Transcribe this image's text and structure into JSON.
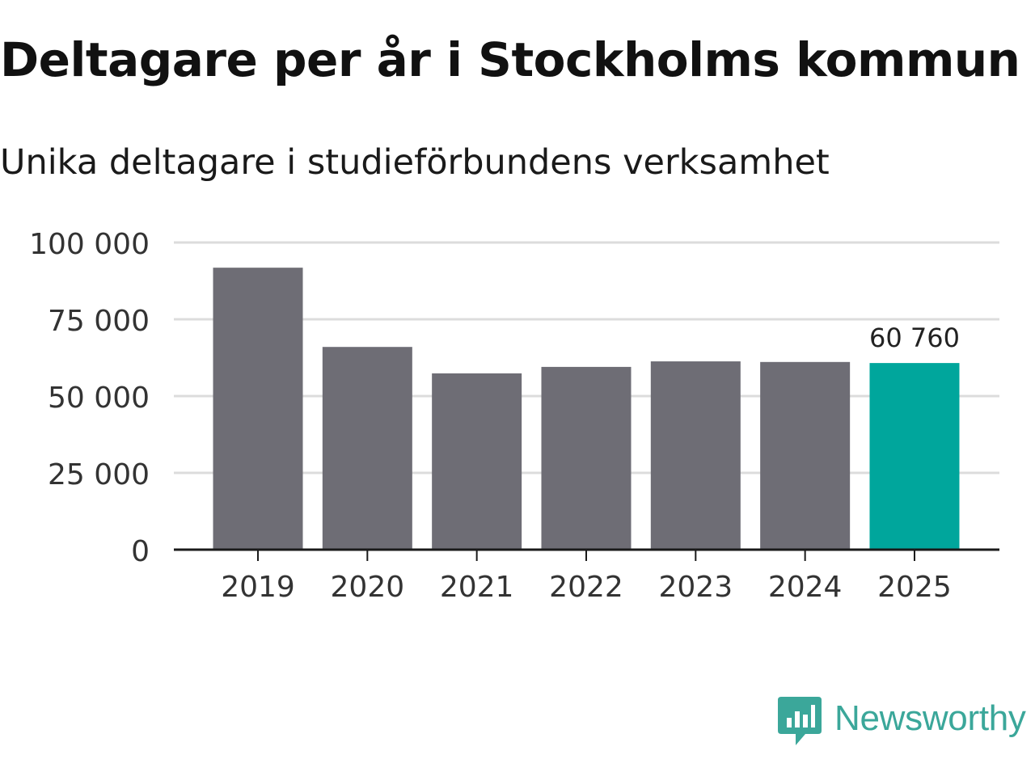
{
  "header": {
    "title": "Deltagare per år i Stockholms kommun",
    "subtitle": "Unika deltagare i studieförbundens verksamhet"
  },
  "brand": {
    "name": "Newsworthy",
    "color": "#3ba79a"
  },
  "colors": {
    "bar": "#6e6d75",
    "highlight": "#00a69c",
    "grid": "#dcdcdc",
    "axis": "#1a1a1a"
  },
  "chart_data": {
    "type": "bar",
    "title": "Deltagare per år i Stockholms kommun",
    "subtitle": "Unika deltagare i studieförbundens verksamhet",
    "categories": [
      "2019",
      "2020",
      "2021",
      "2022",
      "2023",
      "2024",
      "2025"
    ],
    "values": [
      91800,
      66000,
      57400,
      59500,
      61300,
      61100,
      60760
    ],
    "highlight_index": 6,
    "data_labels": [
      {
        "index": 6,
        "text": "60 760"
      }
    ],
    "xlabel": "",
    "ylabel": "",
    "ylim": [
      0,
      100000
    ],
    "yticks": [
      0,
      25000,
      50000,
      75000,
      100000
    ],
    "ytick_labels": [
      "0",
      "25 000",
      "50 000",
      "75 000",
      "100 000"
    ],
    "grid": true
  }
}
